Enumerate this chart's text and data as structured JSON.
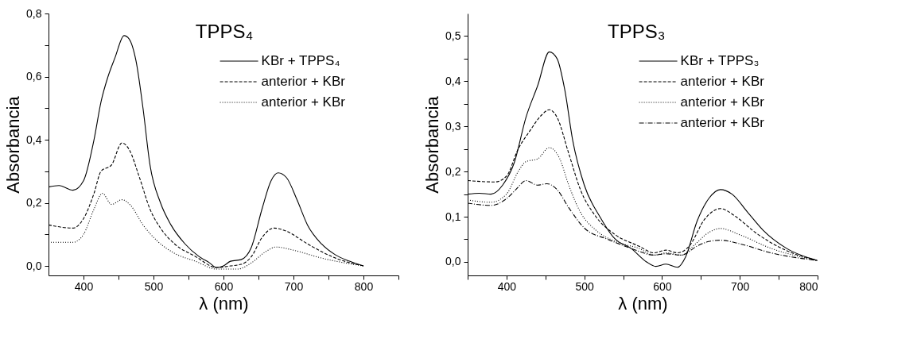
{
  "chart_data": [
    {
      "type": "line",
      "title": "TPPS₄",
      "xlabel": "λ (nm)",
      "ylabel": "Absorbancia",
      "legend": "top right",
      "grid": false,
      "xlim": [
        350,
        850
      ],
      "xticks": [
        400,
        {
          "value": 450,
          "label": null
        },
        500,
        {
          "value": 550,
          "label": null
        },
        600,
        {
          "value": 650,
          "label": null
        },
        700,
        {
          "value": 750,
          "label": null
        },
        800,
        {
          "value": 850,
          "label": null
        }
      ],
      "ylim": [
        -0.03,
        0.8
      ],
      "yticks": [
        {
          "value": 0.0,
          "label": "0,0"
        },
        {
          "value": 0.1,
          "label": null
        },
        {
          "value": 0.2,
          "label": "0,2"
        },
        {
          "value": 0.3,
          "label": null
        },
        {
          "value": 0.4,
          "label": "0,4"
        },
        {
          "value": 0.5,
          "label": null
        },
        {
          "value": 0.6,
          "label": "0,6"
        },
        {
          "value": 0.7,
          "label": null
        },
        {
          "value": 0.8,
          "label": "0,8"
        }
      ],
      "series": [
        {
          "name": "KBr + TPPS₄",
          "color": "#000000",
          "line_style": "solid",
          "x": [
            350,
            365,
            385,
            400,
            415,
            425,
            435,
            445,
            458,
            465,
            475,
            485,
            495,
            510,
            525,
            545,
            565,
            580,
            590,
            600,
            610,
            625,
            640,
            655,
            668,
            678,
            690,
            705,
            720,
            740,
            760,
            780,
            800
          ],
          "values": [
            0.25,
            0.255,
            0.24,
            0.27,
            0.4,
            0.52,
            0.6,
            0.66,
            0.73,
            0.72,
            0.65,
            0.5,
            0.32,
            0.2,
            0.13,
            0.07,
            0.03,
            0.01,
            -0.005,
            0.0,
            0.015,
            0.02,
            0.06,
            0.18,
            0.27,
            0.295,
            0.28,
            0.21,
            0.13,
            0.07,
            0.035,
            0.015,
            0.0
          ]
        },
        {
          "name": "anterior + KBr",
          "color": "#000000",
          "line_style": "dashed",
          "x": [
            350,
            385,
            400,
            415,
            425,
            440,
            455,
            465,
            480,
            495,
            510,
            530,
            560,
            590,
            610,
            625,
            640,
            655,
            672,
            690,
            720,
            760,
            800
          ],
          "values": [
            0.13,
            0.12,
            0.15,
            0.23,
            0.3,
            0.32,
            0.39,
            0.37,
            0.28,
            0.18,
            0.12,
            0.07,
            0.03,
            -0.005,
            0.0,
            0.005,
            0.03,
            0.09,
            0.12,
            0.11,
            0.07,
            0.025,
            0.0
          ]
        },
        {
          "name": "anterior + KBr",
          "color": "#000000",
          "line_style": "dotted",
          "x": [
            350,
            385,
            400,
            415,
            427,
            440,
            455,
            468,
            485,
            505,
            530,
            560,
            590,
            620,
            640,
            660,
            675,
            700,
            740,
            800
          ],
          "values": [
            0.075,
            0.075,
            0.1,
            0.18,
            0.23,
            0.195,
            0.21,
            0.19,
            0.13,
            0.08,
            0.04,
            0.015,
            -0.01,
            -0.01,
            0.01,
            0.045,
            0.06,
            0.05,
            0.025,
            0.0
          ]
        }
      ]
    },
    {
      "type": "line",
      "title": "TPPS₃",
      "xlabel": "λ (nm)",
      "ylabel": "Absorbancia",
      "legend": "top right",
      "grid": false,
      "xlim": [
        350,
        800
      ],
      "xticks": [
        {
          "value": 350,
          "label": null
        },
        400,
        {
          "value": 450,
          "label": null
        },
        500,
        {
          "value": 550,
          "label": null
        },
        600,
        {
          "value": 650,
          "label": null
        },
        700,
        {
          "value": 750,
          "label": null
        },
        800
      ],
      "ylim": [
        -0.03,
        0.55
      ],
      "yticks": [
        {
          "value": 0.0,
          "label": "0,0"
        },
        {
          "value": 0.05,
          "label": null
        },
        {
          "value": 0.1,
          "label": "0,1"
        },
        {
          "value": 0.15,
          "label": null
        },
        {
          "value": 0.2,
          "label": "0,2"
        },
        {
          "value": 0.25,
          "label": null
        },
        {
          "value": 0.3,
          "label": "0,3"
        },
        {
          "value": 0.35,
          "label": null
        },
        {
          "value": 0.4,
          "label": "0,4"
        },
        {
          "value": 0.45,
          "label": null
        },
        {
          "value": 0.5,
          "label": "0,5"
        }
      ],
      "series": [
        {
          "name": "KBr + TPPS₃",
          "color": "#000000",
          "line_style": "solid",
          "x": [
            350,
            365,
            380,
            395,
            410,
            425,
            440,
            455,
            465,
            475,
            485,
            500,
            520,
            540,
            560,
            580,
            592,
            605,
            620,
            630,
            645,
            660,
            675,
            690,
            710,
            730,
            760,
            800
          ],
          "values": [
            0.15,
            0.152,
            0.15,
            0.17,
            0.22,
            0.32,
            0.39,
            0.465,
            0.45,
            0.38,
            0.27,
            0.17,
            0.1,
            0.05,
            0.03,
            0.0,
            -0.01,
            -0.005,
            -0.012,
            0.01,
            0.09,
            0.14,
            0.16,
            0.15,
            0.11,
            0.07,
            0.03,
            0.003
          ]
        },
        {
          "name": "anterior + KBr",
          "color": "#000000",
          "line_style": "dashed",
          "x": [
            350,
            385,
            400,
            415,
            430,
            445,
            455,
            465,
            480,
            495,
            515,
            540,
            570,
            590,
            605,
            620,
            635,
            655,
            675,
            695,
            720,
            760,
            800
          ],
          "values": [
            0.18,
            0.177,
            0.19,
            0.25,
            0.29,
            0.325,
            0.337,
            0.32,
            0.24,
            0.16,
            0.1,
            0.06,
            0.035,
            0.02,
            0.026,
            0.02,
            0.035,
            0.095,
            0.118,
            0.1,
            0.065,
            0.025,
            0.003
          ]
        },
        {
          "name": "anterior + KBr",
          "color": "#000000",
          "line_style": "dotted",
          "x": [
            350,
            380,
            400,
            415,
            425,
            440,
            455,
            468,
            480,
            495,
            515,
            540,
            570,
            590,
            605,
            625,
            640,
            660,
            675,
            700,
            740,
            800
          ],
          "values": [
            0.137,
            0.132,
            0.15,
            0.2,
            0.222,
            0.228,
            0.253,
            0.23,
            0.17,
            0.11,
            0.07,
            0.045,
            0.03,
            0.015,
            0.02,
            0.015,
            0.035,
            0.065,
            0.074,
            0.06,
            0.03,
            0.003
          ]
        },
        {
          "name": "anterior + KBr",
          "color": "#000000",
          "line_style": "dashdot",
          "x": [
            350,
            380,
            400,
            412,
            425,
            440,
            452,
            465,
            480,
            500,
            530,
            560,
            590,
            605,
            625,
            645,
            660,
            675,
            700,
            740,
            800
          ],
          "values": [
            0.13,
            0.125,
            0.14,
            0.16,
            0.18,
            0.17,
            0.173,
            0.16,
            0.12,
            0.075,
            0.05,
            0.03,
            0.015,
            0.018,
            0.015,
            0.035,
            0.045,
            0.048,
            0.04,
            0.02,
            0.003
          ]
        }
      ]
    }
  ]
}
